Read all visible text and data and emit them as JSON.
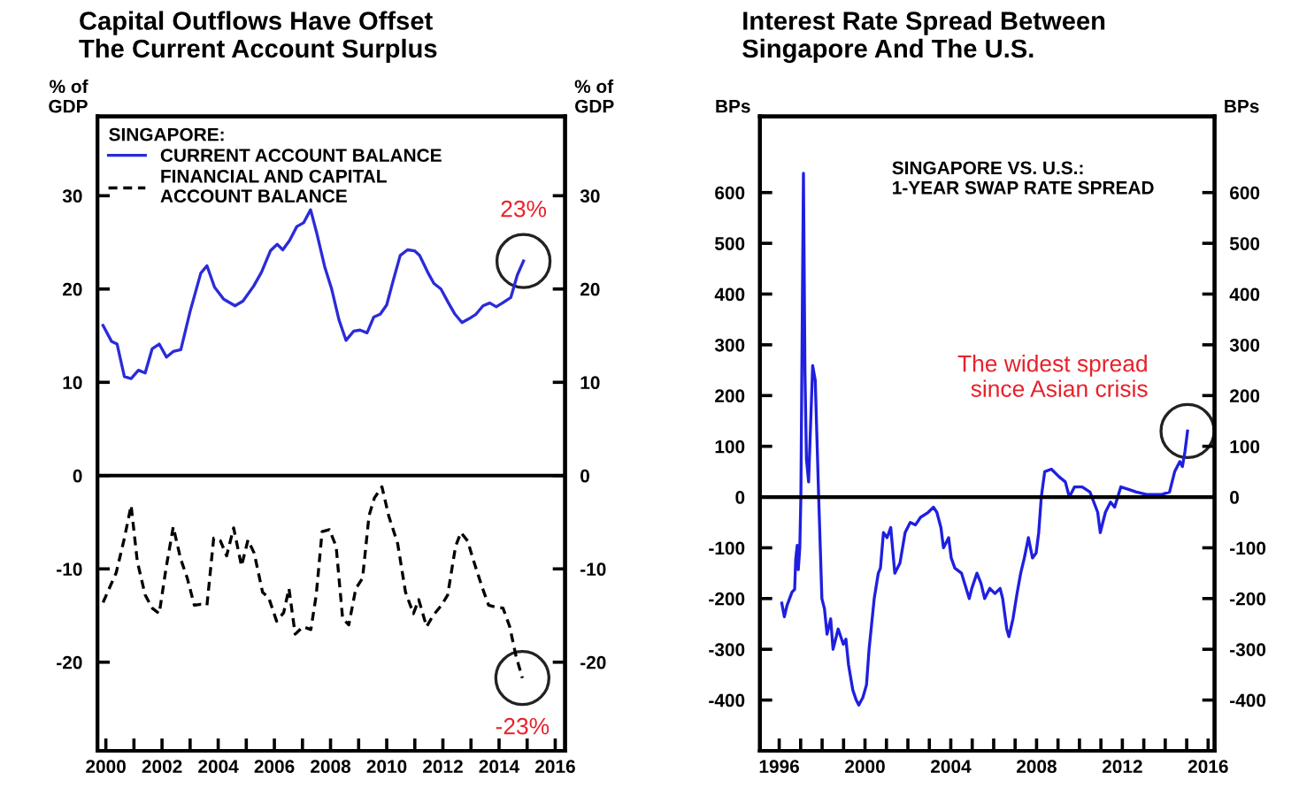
{
  "chart_data": [
    {
      "type": "line",
      "title": "Capital Outflows Have Offset\nThe Current Account Surplus",
      "ylabel": "% of\nGDP",
      "y2label": "% of\nGDP",
      "legend_title": "SINGAPORE:",
      "legend": "top left",
      "annotations": [
        {
          "text": "23%",
          "x": 2014.87,
          "y": 23.0
        },
        {
          "text": "-23%",
          "x": 2014.83,
          "y": -21.7
        }
      ],
      "series": [
        {
          "name": "CURRENT ACCOUNT BALANCE",
          "color": "#2b2bd9",
          "line_style": "solid",
          "x": [
            1999.9,
            2000.2,
            2000.4,
            2000.66,
            2000.9,
            2001.16,
            2001.4,
            2001.65,
            2001.9,
            2002.16,
            2002.4,
            2002.67,
            2003.0,
            2003.38,
            2003.6,
            2003.87,
            2004.2,
            2004.6,
            2004.88,
            2005.26,
            2005.54,
            2005.86,
            2006.1,
            2006.3,
            2006.54,
            2006.8,
            2007.04,
            2007.29,
            2007.5,
            2007.8,
            2008.04,
            2008.3,
            2008.55,
            2008.83,
            2009.05,
            2009.3,
            2009.54,
            2009.77,
            2010.0,
            2010.23,
            2010.48,
            2010.74,
            2010.99,
            2011.17,
            2011.46,
            2011.68,
            2011.93,
            2012.2,
            2012.43,
            2012.68,
            2012.92,
            2013.18,
            2013.43,
            2013.67,
            2013.9,
            2014.12,
            2014.42,
            2014.65,
            2014.87
          ],
          "values": [
            16.1,
            14.4,
            14.1,
            10.6,
            10.4,
            11.3,
            11.0,
            13.6,
            14.1,
            12.7,
            13.3,
            13.5,
            17.6,
            21.7,
            22.5,
            20.2,
            18.9,
            18.2,
            18.7,
            20.3,
            21.8,
            24.1,
            24.8,
            24.2,
            25.2,
            26.7,
            27.1,
            28.5,
            26.1,
            22.3,
            20.0,
            16.7,
            14.5,
            15.5,
            15.6,
            15.3,
            17.0,
            17.3,
            18.3,
            20.9,
            23.6,
            24.2,
            24.1,
            23.6,
            21.8,
            20.6,
            20.0,
            18.5,
            17.3,
            16.4,
            16.8,
            17.3,
            18.2,
            18.5,
            18.1,
            18.5,
            19.1,
            21.5,
            23.0
          ]
        },
        {
          "name": "FINANCIAL AND CAPITAL\nACCOUNT BALANCE",
          "color": "#000000",
          "line_style": "dashed",
          "x": [
            1999.9,
            2000.37,
            2000.66,
            2000.9,
            2001.12,
            2001.4,
            2001.65,
            2001.9,
            2002.15,
            2002.4,
            2002.66,
            2002.9,
            2003.15,
            2003.37,
            2003.6,
            2003.84,
            2004.08,
            2004.3,
            2004.55,
            2004.83,
            2005.06,
            2005.28,
            2005.58,
            2005.8,
            2006.08,
            2006.33,
            2006.52,
            2006.74,
            2007.02,
            2007.3,
            2007.49,
            2007.7,
            2007.96,
            2008.2,
            2008.43,
            2008.65,
            2008.9,
            2009.14,
            2009.37,
            2009.56,
            2009.83,
            2010.07,
            2010.39,
            2010.67,
            2010.95,
            2011.14,
            2011.42,
            2011.65,
            2011.95,
            2012.17,
            2012.45,
            2012.64,
            2012.88,
            2013.1,
            2013.39,
            2013.63,
            2013.9,
            2014.14,
            2014.38,
            2014.6,
            2014.83
          ],
          "values": [
            -13.6,
            -10.4,
            -6.7,
            -3.2,
            -9.2,
            -12.8,
            -14.2,
            -14.8,
            -9.8,
            -5.5,
            -8.9,
            -11.0,
            -13.9,
            -13.8,
            -13.9,
            -6.7,
            -7.0,
            -8.6,
            -5.6,
            -9.7,
            -6.9,
            -8.3,
            -12.5,
            -13.1,
            -15.6,
            -14.7,
            -12.1,
            -17.0,
            -16.2,
            -16.5,
            -12.8,
            -6.0,
            -5.8,
            -7.6,
            -15.3,
            -16.0,
            -12.1,
            -11.0,
            -4.3,
            -2.4,
            -1.2,
            -4.3,
            -7.3,
            -12.5,
            -14.8,
            -13.3,
            -16.2,
            -15.0,
            -13.9,
            -12.8,
            -7.6,
            -6.1,
            -7.0,
            -9.2,
            -11.9,
            -13.9,
            -14.1,
            -14.2,
            -16.2,
            -19.3,
            -21.7
          ]
        }
      ],
      "xlim": [
        1999.7,
        2016.35
      ],
      "xticks": [
        2000,
        {
          "value": 2001,
          "label": null
        },
        2002,
        {
          "value": 2003,
          "label": null
        },
        2004,
        {
          "value": 2005,
          "label": null
        },
        2006,
        {
          "value": 2007,
          "label": null
        },
        2008,
        {
          "value": 2009,
          "label": null
        },
        2010,
        {
          "value": 2011,
          "label": null
        },
        2012,
        {
          "value": 2013,
          "label": null
        },
        2014,
        {
          "value": 2015,
          "label": null
        },
        2016
      ],
      "ylim": [
        -29.5,
        38.5
      ],
      "yticks": [
        -20,
        -10,
        0,
        10,
        20,
        30
      ],
      "y2lim": [
        -29.5,
        38.5
      ],
      "y2ticks": [
        -20,
        -10,
        0,
        10,
        20,
        30
      ],
      "ref_lines": [
        {
          "axis": "y",
          "value": 0,
          "label": null,
          "color": "#000000",
          "line_style": "solid"
        }
      ]
    },
    {
      "type": "line",
      "title": "Interest Rate Spread Between\nSingapore And The U.S.",
      "ylabel": "BPs",
      "y2label": "BPs",
      "annotations": [
        "SINGAPORE VS. U.S.:\n1-YEAR SWAP RATE SPREAD",
        {
          "text": "The widest spread\nsince Asian crisis",
          "x": 2015.04,
          "y": 130
        }
      ],
      "series": [
        {
          "color": "#1f1fe0",
          "line_style": "solid",
          "x": [
            1996.12,
            1996.24,
            1996.36,
            1996.6,
            1996.72,
            1996.77,
            1996.84,
            1996.89,
            1996.96,
            1997.01,
            1997.08,
            1997.13,
            1997.2,
            1997.27,
            1997.37,
            1997.56,
            1997.68,
            1997.84,
            1997.99,
            1998.11,
            1998.23,
            1998.4,
            1998.51,
            1998.75,
            1998.99,
            1999.11,
            1999.23,
            1999.43,
            1999.59,
            1999.71,
            1999.9,
            2000.07,
            2000.19,
            2000.43,
            2000.62,
            2000.72,
            2000.86,
            2001.03,
            2001.2,
            2001.39,
            2001.63,
            2001.75,
            2001.87,
            2002.11,
            2002.35,
            2002.59,
            2002.95,
            2003.19,
            2003.35,
            2003.54,
            2003.66,
            2003.9,
            2004.02,
            2004.19,
            2004.5,
            2004.86,
            2004.98,
            2005.22,
            2005.41,
            2005.58,
            2005.82,
            2006.06,
            2006.3,
            2006.42,
            2006.61,
            2006.71,
            2006.9,
            2007.09,
            2007.26,
            2007.43,
            2007.62,
            2007.81,
            2007.98,
            2008.1,
            2008.22,
            2008.38,
            2008.69,
            2009.05,
            2009.34,
            2009.53,
            2009.77,
            2010.13,
            2010.49,
            2010.85,
            2010.97,
            2011.21,
            2011.45,
            2011.64,
            2011.93,
            2012.29,
            2012.65,
            2013.13,
            2013.84,
            2014.2,
            2014.44,
            2014.68,
            2014.8,
            2014.92,
            2015.04
          ],
          "values": [
            -209,
            -236,
            -214,
            -187,
            -182,
            -122,
            -95,
            -143,
            -100,
            0,
            378,
            638,
            248,
            75,
            30,
            259,
            230,
            0,
            -200,
            -220,
            -270,
            -240,
            -300,
            -260,
            -290,
            -280,
            -330,
            -380,
            -400,
            -410,
            -395,
            -370,
            -300,
            -200,
            -150,
            -140,
            -70,
            -80,
            -60,
            -150,
            -130,
            -100,
            -70,
            -50,
            -55,
            -40,
            -30,
            -20,
            -30,
            -60,
            -100,
            -80,
            -120,
            -140,
            -150,
            -200,
            -180,
            -150,
            -170,
            -200,
            -180,
            -190,
            -180,
            -200,
            -260,
            -275,
            -240,
            -190,
            -150,
            -120,
            -80,
            -120,
            -110,
            -70,
            0,
            50,
            55,
            40,
            30,
            0,
            20,
            20,
            10,
            -30,
            -70,
            -30,
            -10,
            -20,
            20,
            15,
            10,
            5,
            5,
            10,
            50,
            70,
            60,
            90,
            130
          ]
        }
      ],
      "xlim": [
        1995.1,
        2016.3
      ],
      "xticks": [
        1996,
        {
          "value": 1997,
          "label": null
        },
        {
          "value": 1998,
          "label": null
        },
        {
          "value": 1999,
          "label": null
        },
        2000,
        {
          "value": 2001,
          "label": null
        },
        {
          "value": 2002,
          "label": null
        },
        {
          "value": 2003,
          "label": null
        },
        2004,
        {
          "value": 2005,
          "label": null
        },
        {
          "value": 2006,
          "label": null
        },
        {
          "value": 2007,
          "label": null
        },
        2008,
        {
          "value": 2009,
          "label": null
        },
        {
          "value": 2010,
          "label": null
        },
        {
          "value": 2011,
          "label": null
        },
        2012,
        {
          "value": 2013,
          "label": null
        },
        {
          "value": 2014,
          "label": null
        },
        {
          "value": 2015,
          "label": null
        },
        2016
      ],
      "ylim": [
        -500,
        750
      ],
      "yticks": [
        -400,
        -300,
        -200,
        -100,
        0,
        100,
        200,
        300,
        400,
        500,
        600
      ],
      "y2lim": [
        -500,
        750
      ],
      "y2ticks": [
        -400,
        -300,
        -200,
        -100,
        0,
        100,
        200,
        300,
        400,
        500,
        600
      ],
      "ref_lines": [
        {
          "axis": "y",
          "value": 0,
          "label": null,
          "color": "#000000",
          "line_style": "solid"
        }
      ]
    }
  ]
}
